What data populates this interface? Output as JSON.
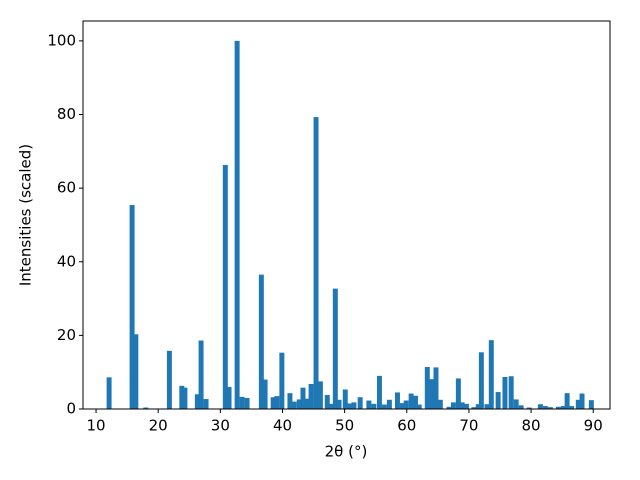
{
  "chart_data": {
    "type": "bar",
    "xlabel": "2θ (°)",
    "ylabel": "Intensities (scaled)",
    "color": "#1f77b4",
    "x": [
      12.1,
      15.8,
      16.4,
      18.0,
      21.8,
      23.8,
      24.3,
      26.3,
      26.9,
      27.7,
      30.8,
      31.4,
      32.7,
      33.5,
      34.3,
      36.6,
      37.2,
      38.5,
      39.1,
      39.9,
      41.2,
      41.9,
      42.7,
      43.3,
      44.0,
      44.6,
      45.4,
      46.1,
      47.2,
      47.8,
      48.5,
      49.1,
      50.1,
      50.7,
      51.5,
      52.5,
      53.9,
      54.7,
      55.6,
      56.4,
      57.2,
      58.5,
      59.3,
      59.9,
      60.7,
      61.4,
      62.0,
      63.3,
      63.9,
      64.7,
      65.4,
      66.8,
      67.5,
      68.3,
      68.9,
      69.6,
      70.8,
      71.5,
      72.0,
      72.9,
      73.6,
      74.7,
      75.8,
      76.8,
      77.6,
      78.4,
      79.7,
      81.5,
      82.3,
      83.1,
      84.4,
      85.2,
      85.8,
      86.5,
      87.6,
      88.2,
      89.7
    ],
    "values": [
      8.6,
      55.4,
      20.3,
      0.4,
      15.8,
      6.3,
      5.8,
      4,
      18.6,
      2.7,
      66.3,
      6,
      100,
      3.3,
      3,
      36.5,
      8,
      3.2,
      3.5,
      15.3,
      4.3,
      2,
      2.6,
      5.8,
      2.8,
      6.8,
      79.3,
      7.5,
      3.8,
      1.4,
      32.7,
      2.5,
      5.3,
      1.5,
      1.8,
      3.2,
      2.3,
      1.4,
      9,
      1.2,
      2.5,
      4.5,
      1.6,
      2.3,
      4.2,
      3.6,
      1.2,
      11.4,
      8.1,
      11.3,
      2.5,
      0.6,
      1.8,
      8.3,
      1.8,
      1.4,
      0.5,
      1.3,
      15.4,
      1.3,
      18.7,
      4.6,
      8.7,
      8.9,
      2.6,
      1,
      0.4,
      1.3,
      0.8,
      0.5,
      0.6,
      0.8,
      4.3,
      0.8,
      2.5,
      4.2,
      2.4
    ],
    "xlim": [
      7.9,
      92.7
    ],
    "ylim": [
      0,
      105.4
    ],
    "xticks": [
      10,
      20,
      30,
      40,
      50,
      60,
      70,
      80,
      90
    ],
    "yticks": [
      0,
      20,
      40,
      60,
      80,
      100
    ]
  }
}
